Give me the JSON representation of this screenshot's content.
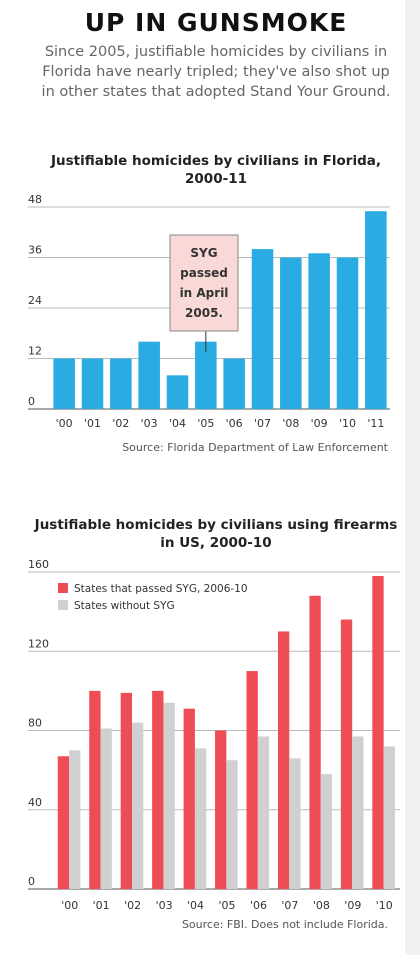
{
  "headline": "UP IN GUNSMOKE",
  "dek": "Since 2005, justifiable homicides by civilians in Florida have nearly tripled; they've also shot up in other states that adopted Stand Your Ground.",
  "chart_data": [
    {
      "type": "bar",
      "title": "Justifiable homicides by civilians in Florida, 2000-11",
      "xlabel": "",
      "ylabel": "",
      "categories": [
        "'00",
        "'01",
        "'02",
        "'03",
        "'04",
        "'05",
        "'06",
        "'07",
        "'08",
        "'09",
        "'10",
        "'11"
      ],
      "values": [
        12,
        12,
        12,
        16,
        8,
        16,
        12,
        38,
        36,
        37,
        36,
        47
      ],
      "yticks": [
        0,
        12,
        24,
        36,
        48
      ],
      "ylim": [
        0,
        48
      ],
      "grid": true,
      "color": "#2aabe2",
      "annotation": {
        "text": "SYG passed in April 2005.",
        "category": "'05"
      },
      "source": "Source: Florida Department of Law Enforcement"
    },
    {
      "type": "bar",
      "title": "Justifiable homicides by civilians using firearms in US, 2000-10",
      "xlabel": "",
      "ylabel": "",
      "categories": [
        "'00",
        "'01",
        "'02",
        "'03",
        "'04",
        "'05",
        "'06",
        "'07",
        "'08",
        "'09",
        "'10"
      ],
      "series": [
        {
          "name": "States that passed SYG, 2006-10",
          "values": [
            67,
            100,
            99,
            100,
            91,
            80,
            110,
            130,
            148,
            136,
            158
          ],
          "color": "#ee4d55"
        },
        {
          "name": "States without SYG",
          "values": [
            70,
            81,
            84,
            94,
            71,
            65,
            77,
            66,
            58,
            77,
            72
          ],
          "color": "#d0d0d0"
        }
      ],
      "yticks": [
        0,
        40,
        80,
        120,
        160
      ],
      "ylim": [
        0,
        160
      ],
      "grid": true,
      "legend": "top-left",
      "source": "Source: FBI. Does not include Florida."
    }
  ]
}
